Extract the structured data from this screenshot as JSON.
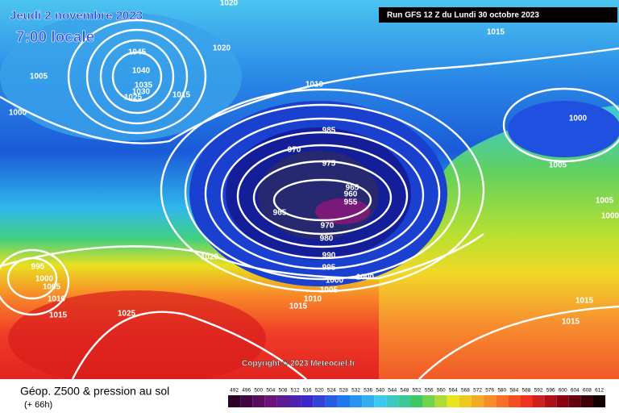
{
  "header": {
    "date": "Jeudi 2 novembre 2023",
    "time": "7:00 locale",
    "run": "Run GFS 12 Z du Lundi 30 octobre 2023"
  },
  "isobar_labels": [
    1020,
    1045,
    1020,
    1005,
    1040,
    1035,
    1030,
    1025,
    1015,
    1010,
    1000,
    985,
    970,
    975,
    965,
    960,
    955,
    965,
    970,
    980,
    990,
    995,
    1000,
    1000,
    1005,
    1010,
    1015,
    1020,
    995,
    1000,
    1005,
    1010,
    1015,
    1025,
    1015,
    1000,
    1005,
    1005,
    1000,
    1015,
    1015
  ],
  "copyright": "Copyright © 2023 Meteociel.fr",
  "legend": {
    "title": "Géop. Z500 & pression au sol",
    "lead": "(+ 66h)",
    "ticks": [
      492,
      496,
      500,
      504,
      508,
      512,
      516,
      520,
      524,
      528,
      532,
      536,
      540,
      544,
      548,
      552,
      556,
      560,
      564,
      568,
      572,
      576,
      580,
      584,
      588,
      592,
      596,
      600,
      604,
      608,
      612
    ]
  }
}
